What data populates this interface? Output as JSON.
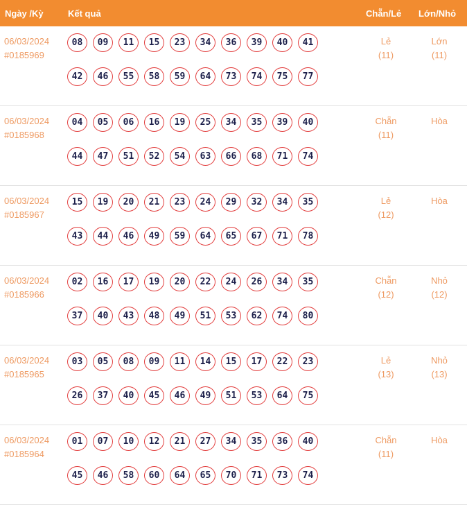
{
  "header": {
    "date": "Ngày /Kỳ",
    "result": "Kết quả",
    "chan_le": "Chẵn/Lẻ",
    "lon_nho": "Lớn/Nhỏ"
  },
  "colors": {
    "header_bg": "#f28c30",
    "accent_text": "#ee9a62",
    "ball_border": "#e23b3b",
    "ball_text": "#1c1f4a"
  },
  "draws": [
    {
      "date": "06/03/2024",
      "id": "#0185969",
      "numbers": [
        "08",
        "09",
        "11",
        "15",
        "23",
        "34",
        "36",
        "39",
        "40",
        "41",
        "42",
        "46",
        "55",
        "58",
        "59",
        "64",
        "73",
        "74",
        "75",
        "77"
      ],
      "chan_le": "Lẻ",
      "chan_le_count": "(11)",
      "lon_nho": "Lớn",
      "lon_nho_count": "(11)"
    },
    {
      "date": "06/03/2024",
      "id": "#0185968",
      "numbers": [
        "04",
        "05",
        "06",
        "16",
        "19",
        "25",
        "34",
        "35",
        "39",
        "40",
        "44",
        "47",
        "51",
        "52",
        "54",
        "63",
        "66",
        "68",
        "71",
        "74"
      ],
      "chan_le": "Chẵn",
      "chan_le_count": "(11)",
      "lon_nho": "Hòa",
      "lon_nho_count": ""
    },
    {
      "date": "06/03/2024",
      "id": "#0185967",
      "numbers": [
        "15",
        "19",
        "20",
        "21",
        "23",
        "24",
        "29",
        "32",
        "34",
        "35",
        "43",
        "44",
        "46",
        "49",
        "59",
        "64",
        "65",
        "67",
        "71",
        "78"
      ],
      "chan_le": "Lẻ",
      "chan_le_count": "(12)",
      "lon_nho": "Hòa",
      "lon_nho_count": ""
    },
    {
      "date": "06/03/2024",
      "id": "#0185966",
      "numbers": [
        "02",
        "16",
        "17",
        "19",
        "20",
        "22",
        "24",
        "26",
        "34",
        "35",
        "37",
        "40",
        "43",
        "48",
        "49",
        "51",
        "53",
        "62",
        "74",
        "80"
      ],
      "chan_le": "Chẵn",
      "chan_le_count": "(12)",
      "lon_nho": "Nhỏ",
      "lon_nho_count": "(12)"
    },
    {
      "date": "06/03/2024",
      "id": "#0185965",
      "numbers": [
        "03",
        "05",
        "08",
        "09",
        "11",
        "14",
        "15",
        "17",
        "22",
        "23",
        "26",
        "37",
        "40",
        "45",
        "46",
        "49",
        "51",
        "53",
        "64",
        "75"
      ],
      "chan_le": "Lẻ",
      "chan_le_count": "(13)",
      "lon_nho": "Nhỏ",
      "lon_nho_count": "(13)"
    },
    {
      "date": "06/03/2024",
      "id": "#0185964",
      "numbers": [
        "01",
        "07",
        "10",
        "12",
        "21",
        "27",
        "34",
        "35",
        "36",
        "40",
        "45",
        "46",
        "58",
        "60",
        "64",
        "65",
        "70",
        "71",
        "73",
        "74"
      ],
      "chan_le": "Chẵn",
      "chan_le_count": "(11)",
      "lon_nho": "Hòa",
      "lon_nho_count": ""
    }
  ]
}
